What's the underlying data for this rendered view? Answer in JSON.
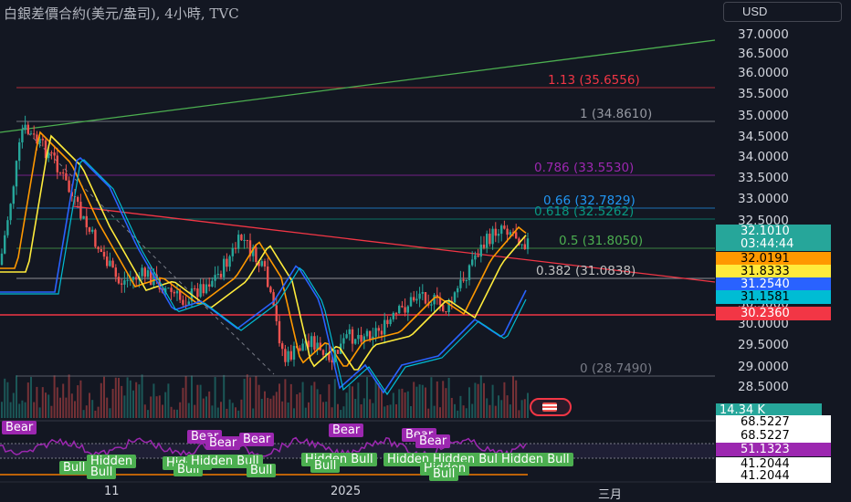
{
  "title": "白銀差價合約(美元/盎司), 4小時, TVC",
  "currency_button": "USD",
  "price_axis": [
    "37.0000",
    "36.5000",
    "36.0000",
    "35.5000",
    "35.0000",
    "34.5000",
    "34.0000",
    "33.5000",
    "33.0000",
    "32.5000",
    "30.5000",
    "30.0000",
    "29.5000",
    "29.0000",
    "28.5000"
  ],
  "price_tags": [
    {
      "label": "32.1010",
      "color": "#26a69a",
      "text": "#ffffff"
    },
    {
      "label": "03:44:44",
      "color": "#26a69a",
      "text": "#ffffff"
    },
    {
      "label": "32.0191",
      "color": "#ff9800",
      "text": "#000000"
    },
    {
      "label": "31.8333",
      "color": "#ffeb3b",
      "text": "#000000"
    },
    {
      "label": "31.2540",
      "color": "#2962ff",
      "text": "#ffffff"
    },
    {
      "label": "31.1581",
      "color": "#00bcd4",
      "text": "#000000"
    },
    {
      "label": "30.2360",
      "color": "#f23645",
      "text": "#ffffff"
    },
    {
      "label": "14.34 K",
      "color": "#26a69a",
      "text": "#ffffff"
    }
  ],
  "osc_tags": [
    {
      "label": "68.5227",
      "color": "#ffffff",
      "text": "#000000"
    },
    {
      "label": "68.5227",
      "color": "#ffffff",
      "text": "#000000"
    },
    {
      "label": "51.1323",
      "color": "#9c27b0",
      "text": "#ffffff"
    },
    {
      "label": "41.2044",
      "color": "#ffffff",
      "text": "#000000"
    },
    {
      "label": "41.2044",
      "color": "#ffffff",
      "text": "#000000"
    }
  ],
  "fib_levels": [
    {
      "label": "1.13 (35.6556)",
      "color": "#f23645"
    },
    {
      "label": "1 (34.8610)",
      "color": "#9598a1"
    },
    {
      "label": "0.786 (33.5530)",
      "color": "#9c27b0"
    },
    {
      "label": "0.66 (32.7829)",
      "color": "#2196f3"
    },
    {
      "label": "0.618 (32.5262)",
      "color": "#089981"
    },
    {
      "label": "0.5 (31.8050)",
      "color": "#4caf50"
    },
    {
      "label": "0.382 (31.0838)",
      "color": "#c0c0c0"
    },
    {
      "label": "0 (28.7490)",
      "color": "#787b86"
    }
  ],
  "x_axis": [
    "11",
    "2025",
    "三月"
  ],
  "badges": {
    "bear": [
      "Bear",
      "Bear",
      "Bear",
      "Bear",
      "Bear",
      "Bear",
      "Bear"
    ],
    "bull": [
      "Bull",
      "Hidden",
      "Bull",
      "Hidden",
      "Bull",
      "Hidden Bull",
      "Bull",
      "Hidden Bull",
      "Bull",
      "Hidden Bull",
      "Hidden Bull",
      "Hidden",
      "Bull",
      "Hidden Bull"
    ]
  },
  "colors": {
    "background": "#131722",
    "up": "#26a69a",
    "down": "#ef5350",
    "trend_green": "#4caf50",
    "trend_red": "#f23645"
  }
}
